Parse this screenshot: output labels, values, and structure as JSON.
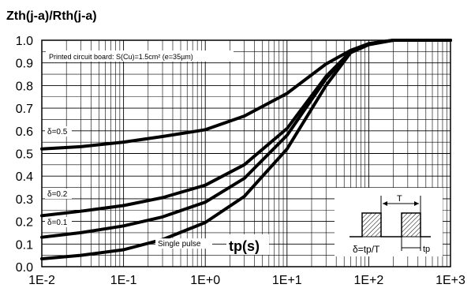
{
  "chart_data": {
    "type": "line",
    "title": "Zth(j-a)/Rth(j-a)",
    "xlabel": "tp(s)",
    "ylabel": "",
    "x_scale": "log",
    "xlim": [
      "1E-2",
      "1E+3"
    ],
    "ylim": [
      0,
      1
    ],
    "grid": true,
    "x_ticks": [
      "1E-2",
      "1E-1",
      "1E+0",
      "1E+1",
      "1E+2",
      "1E+3"
    ],
    "y_ticks": [
      "0.0",
      "0.1",
      "0.2",
      "0.3",
      "0.4",
      "0.5",
      "0.6",
      "0.7",
      "0.8",
      "0.9",
      "1.0"
    ],
    "annotation": "Printed circuit board: S(Cu)=1.5cm² (e=35µm)",
    "series": [
      {
        "name": "δ=0.5",
        "x": [
          0.01,
          0.03,
          0.1,
          0.3,
          1,
          3,
          10,
          30,
          60,
          100,
          200,
          1000
        ],
        "values": [
          0.52,
          0.53,
          0.55,
          0.575,
          0.605,
          0.665,
          0.765,
          0.895,
          0.955,
          0.985,
          1.0,
          1.0
        ]
      },
      {
        "name": "δ=0.2",
        "x": [
          0.01,
          0.03,
          0.1,
          0.3,
          1,
          3,
          10,
          30,
          60,
          100,
          200,
          1000
        ],
        "values": [
          0.225,
          0.245,
          0.27,
          0.305,
          0.36,
          0.45,
          0.61,
          0.84,
          0.95,
          0.985,
          1.0,
          1.0
        ]
      },
      {
        "name": "δ=0.1",
        "x": [
          0.01,
          0.03,
          0.1,
          0.3,
          1,
          3,
          10,
          30,
          60,
          100,
          200,
          1000
        ],
        "values": [
          0.13,
          0.15,
          0.18,
          0.22,
          0.285,
          0.39,
          0.58,
          0.83,
          0.95,
          0.985,
          1.0,
          1.0
        ]
      },
      {
        "name": "Single pulse",
        "x": [
          0.01,
          0.03,
          0.1,
          0.3,
          1,
          3,
          10,
          30,
          60,
          100,
          200,
          1000
        ],
        "values": [
          0.035,
          0.05,
          0.075,
          0.12,
          0.195,
          0.31,
          0.52,
          0.8,
          0.945,
          0.98,
          1.0,
          1.0
        ]
      }
    ],
    "inset": {
      "period_label": "T",
      "duty_label": "δ=tp/T",
      "pulse_label": "tp"
    }
  }
}
